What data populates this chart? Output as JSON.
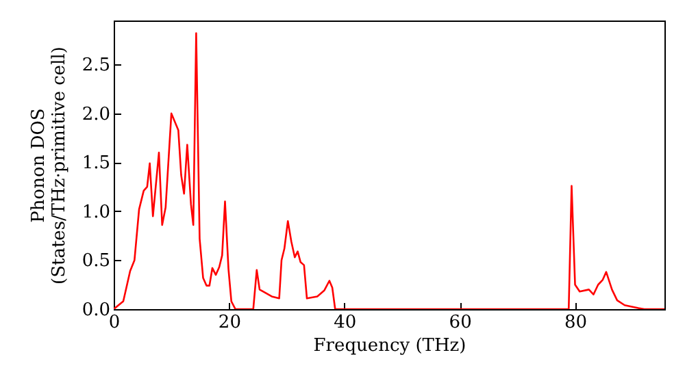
{
  "chart_data": {
    "type": "line",
    "xlabel": "Frequency (THz)",
    "ylabel": "Phonon DOS\n(States/THz·primitive cell)",
    "x": [
      0,
      1.66,
      2.85,
      3.6,
      4.4,
      5.2,
      5.8,
      6.25,
      6.8,
      7.84,
      8.4,
      9.0,
      10.0,
      11.2,
      11.7,
      12.2,
      12.75,
      13.4,
      13.8,
      14.3,
      14.9,
      15.5,
      16.1,
      16.6,
      17.1,
      17.7,
      18.3,
      18.8,
      19.3,
      19.9,
      20.4,
      21.1,
      24.2,
      24.8,
      25.3,
      26.2,
      27.4,
      28.7,
      29.1,
      29.6,
      30.2,
      30.8,
      31.4,
      31.9,
      32.4,
      33.0,
      33.5,
      35.3,
      36.5,
      37.4,
      37.9,
      38.4,
      78.9,
      79.4,
      80.0,
      80.8,
      82.4,
      83.2,
      84.0,
      84.8,
      85.4,
      86.4,
      87.3,
      88.6,
      91.0,
      92.0,
      95.5
    ],
    "series": [
      {
        "color": "#ff0000",
        "values": [
          0,
          0.08,
          0.39,
          0.5,
          1.02,
          1.21,
          1.25,
          1.49,
          0.95,
          1.6,
          0.86,
          1.04,
          2.0,
          1.83,
          1.37,
          1.18,
          1.68,
          1.07,
          0.86,
          2.82,
          0.72,
          0.32,
          0.24,
          0.24,
          0.42,
          0.35,
          0.43,
          0.55,
          1.1,
          0.41,
          0.08,
          0,
          0,
          0.4,
          0.2,
          0.17,
          0.13,
          0.11,
          0.5,
          0.62,
          0.9,
          0.69,
          0.53,
          0.59,
          0.48,
          0.45,
          0.11,
          0.13,
          0.19,
          0.29,
          0.22,
          0,
          0,
          1.26,
          0.25,
          0.18,
          0.2,
          0.15,
          0.25,
          0.3,
          0.38,
          0.2,
          0.09,
          0.04,
          0.01,
          0,
          0
        ]
      }
    ],
    "xlim": [
      0,
      95.5
    ],
    "xticks": [
      0,
      20,
      40,
      60,
      80
    ],
    "ylim": [
      0,
      2.95
    ],
    "yticks": [
      {
        "value": 0,
        "label": "0.0"
      },
      {
        "value": 0.5,
        "label": "0.5"
      },
      {
        "value": 1,
        "label": "1.0"
      },
      {
        "value": 1.5,
        "label": "1.5"
      },
      {
        "value": 2,
        "label": "2.0"
      },
      {
        "value": 2.5,
        "label": "2.5"
      }
    ],
    "grid": false,
    "marker": "none",
    "line_style": "solid"
  }
}
